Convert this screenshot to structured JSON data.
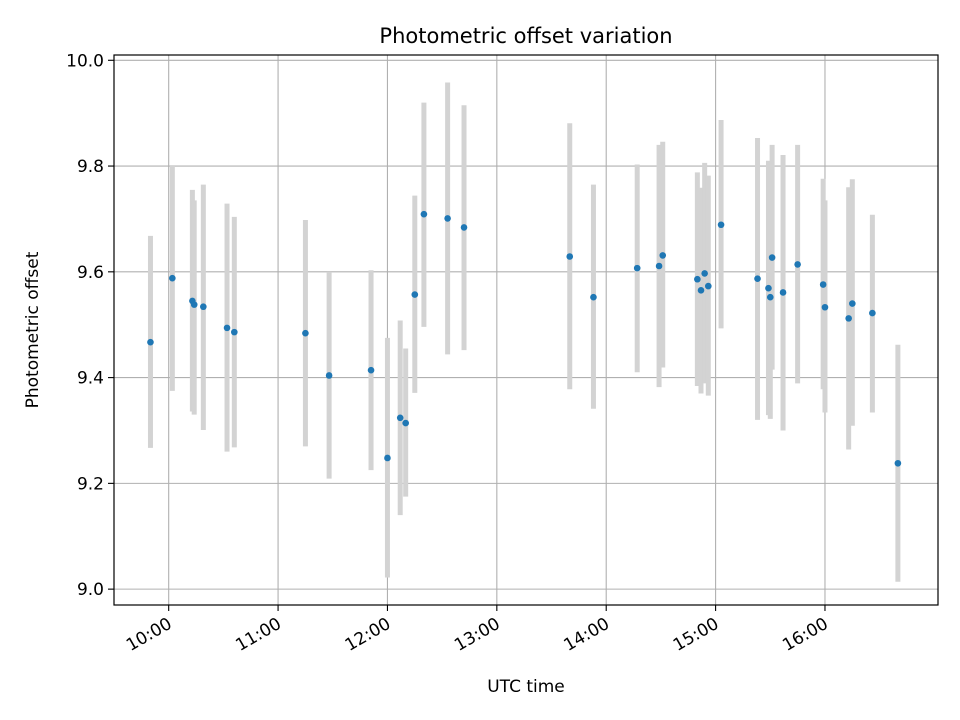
{
  "chart_data": {
    "type": "scatter",
    "title": "Photometric offset variation",
    "xlabel": "UTC time",
    "ylabel": "Photometric offset",
    "xlim": [
      "09:30",
      "17:02"
    ],
    "ylim": [
      8.97,
      10.01
    ],
    "x_ticks": [
      "10:00",
      "11:00",
      "12:00",
      "13:00",
      "14:00",
      "15:00",
      "16:00"
    ],
    "y_ticks": [
      "9.0",
      "9.2",
      "9.4",
      "9.6",
      "9.8",
      "10.0"
    ],
    "grid": true,
    "errorbar_color": "#d3d3d3",
    "point_color": "#1f77b4",
    "points": [
      {
        "x": "09:50",
        "y": 9.467,
        "lo": 9.267,
        "hi": 9.668
      },
      {
        "x": "10:02",
        "y": 9.588,
        "lo": 9.375,
        "hi": 9.8
      },
      {
        "x": "10:13",
        "y": 9.545,
        "lo": 9.336,
        "hi": 9.755
      },
      {
        "x": "10:14",
        "y": 9.538,
        "lo": 9.33,
        "hi": 9.735
      },
      {
        "x": "10:19",
        "y": 9.534,
        "lo": 9.301,
        "hi": 9.765
      },
      {
        "x": "10:32",
        "y": 9.494,
        "lo": 9.26,
        "hi": 9.729
      },
      {
        "x": "10:36",
        "y": 9.486,
        "lo": 9.268,
        "hi": 9.704
      },
      {
        "x": "11:15",
        "y": 9.484,
        "lo": 9.27,
        "hi": 9.698
      },
      {
        "x": "11:28",
        "y": 9.404,
        "lo": 9.209,
        "hi": 9.6
      },
      {
        "x": "11:51",
        "y": 9.414,
        "lo": 9.225,
        "hi": 9.603
      },
      {
        "x": "12:00",
        "y": 9.248,
        "lo": 9.022,
        "hi": 9.475
      },
      {
        "x": "12:07",
        "y": 9.324,
        "lo": 9.14,
        "hi": 9.508
      },
      {
        "x": "12:10",
        "y": 9.314,
        "lo": 9.175,
        "hi": 9.455
      },
      {
        "x": "12:15",
        "y": 9.557,
        "lo": 9.371,
        "hi": 9.744
      },
      {
        "x": "12:20",
        "y": 9.709,
        "lo": 9.496,
        "hi": 9.92
      },
      {
        "x": "12:33",
        "y": 9.701,
        "lo": 9.444,
        "hi": 9.958
      },
      {
        "x": "12:42",
        "y": 9.684,
        "lo": 9.452,
        "hi": 9.915
      },
      {
        "x": "13:40",
        "y": 9.629,
        "lo": 9.378,
        "hi": 9.881
      },
      {
        "x": "13:53",
        "y": 9.552,
        "lo": 9.341,
        "hi": 9.765
      },
      {
        "x": "14:17",
        "y": 9.607,
        "lo": 9.41,
        "hi": 9.803
      },
      {
        "x": "14:29",
        "y": 9.611,
        "lo": 9.382,
        "hi": 9.84
      },
      {
        "x": "14:31",
        "y": 9.631,
        "lo": 9.419,
        "hi": 9.846
      },
      {
        "x": "14:50",
        "y": 9.586,
        "lo": 9.384,
        "hi": 9.788
      },
      {
        "x": "14:52",
        "y": 9.565,
        "lo": 9.37,
        "hi": 9.759
      },
      {
        "x": "14:54",
        "y": 9.597,
        "lo": 9.389,
        "hi": 9.806
      },
      {
        "x": "14:56",
        "y": 9.573,
        "lo": 9.366,
        "hi": 9.782
      },
      {
        "x": "15:03",
        "y": 9.689,
        "lo": 9.493,
        "hi": 9.887
      },
      {
        "x": "15:23",
        "y": 9.587,
        "lo": 9.32,
        "hi": 9.853
      },
      {
        "x": "15:29",
        "y": 9.569,
        "lo": 9.329,
        "hi": 9.81
      },
      {
        "x": "15:30",
        "y": 9.552,
        "lo": 9.322,
        "hi": 9.782
      },
      {
        "x": "15:31",
        "y": 9.627,
        "lo": 9.415,
        "hi": 9.84
      },
      {
        "x": "15:37",
        "y": 9.561,
        "lo": 9.3,
        "hi": 9.821
      },
      {
        "x": "15:45",
        "y": 9.614,
        "lo": 9.389,
        "hi": 9.84
      },
      {
        "x": "15:59",
        "y": 9.576,
        "lo": 9.378,
        "hi": 9.776
      },
      {
        "x": "16:00",
        "y": 9.533,
        "lo": 9.334,
        "hi": 9.735
      },
      {
        "x": "16:13",
        "y": 9.512,
        "lo": 9.264,
        "hi": 9.76
      },
      {
        "x": "16:15",
        "y": 9.54,
        "lo": 9.309,
        "hi": 9.775
      },
      {
        "x": "16:26",
        "y": 9.522,
        "lo": 9.334,
        "hi": 9.708
      },
      {
        "x": "16:40",
        "y": 9.238,
        "lo": 9.014,
        "hi": 9.462
      }
    ]
  }
}
